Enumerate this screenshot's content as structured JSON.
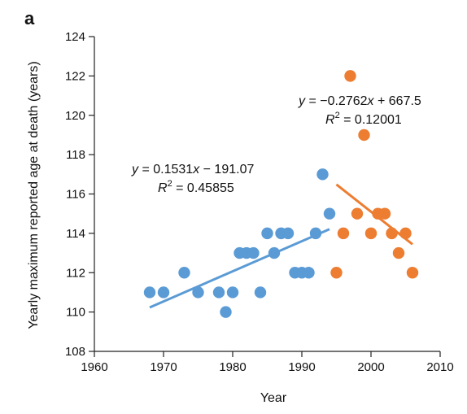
{
  "panel_label": "a",
  "chart_data": {
    "type": "scatter",
    "xlabel": "Year",
    "ylabel": "Yearly maximum reported age at death (years)",
    "xlim": [
      1960,
      2010
    ],
    "ylim": [
      108,
      124
    ],
    "xticks": [
      1960,
      1970,
      1980,
      1990,
      2000,
      2010
    ],
    "yticks": [
      108,
      110,
      112,
      114,
      116,
      118,
      120,
      122,
      124
    ],
    "grid": false,
    "series": [
      {
        "color": "#5b9bd5",
        "points": [
          [
            1968,
            111
          ],
          [
            1970,
            111
          ],
          [
            1973,
            112
          ],
          [
            1975,
            111
          ],
          [
            1978,
            111
          ],
          [
            1979,
            110
          ],
          [
            1980,
            111
          ],
          [
            1981,
            113
          ],
          [
            1982,
            113
          ],
          [
            1983,
            113
          ],
          [
            1984,
            111
          ],
          [
            1985,
            114
          ],
          [
            1986,
            113
          ],
          [
            1987,
            114
          ],
          [
            1988,
            114
          ],
          [
            1989,
            112
          ],
          [
            1990,
            112
          ],
          [
            1991,
            112
          ],
          [
            1992,
            114
          ],
          [
            1993,
            117
          ],
          [
            1994,
            115
          ]
        ],
        "fit": {
          "slope": 0.1531,
          "intercept": -191.07,
          "x_range": [
            1968,
            1994
          ]
        },
        "equation": "= 0.1531",
        "equation_tail": " − 191.07",
        "r2": " = 0.45855"
      },
      {
        "color": "#ed7d31",
        "points": [
          [
            1995,
            112
          ],
          [
            1996,
            114
          ],
          [
            1997,
            122
          ],
          [
            1998,
            115
          ],
          [
            1999,
            119
          ],
          [
            2000,
            114
          ],
          [
            2001,
            115
          ],
          [
            2002,
            115
          ],
          [
            2003,
            114
          ],
          [
            2004,
            113
          ],
          [
            2005,
            114
          ],
          [
            2006,
            112
          ]
        ],
        "fit": {
          "slope": -0.2762,
          "intercept": 667.5,
          "x_range": [
            1995,
            2006
          ]
        },
        "equation": "= −0.2762",
        "equation_tail": " + 667.5",
        "r2": " = 0.12001"
      }
    ]
  }
}
